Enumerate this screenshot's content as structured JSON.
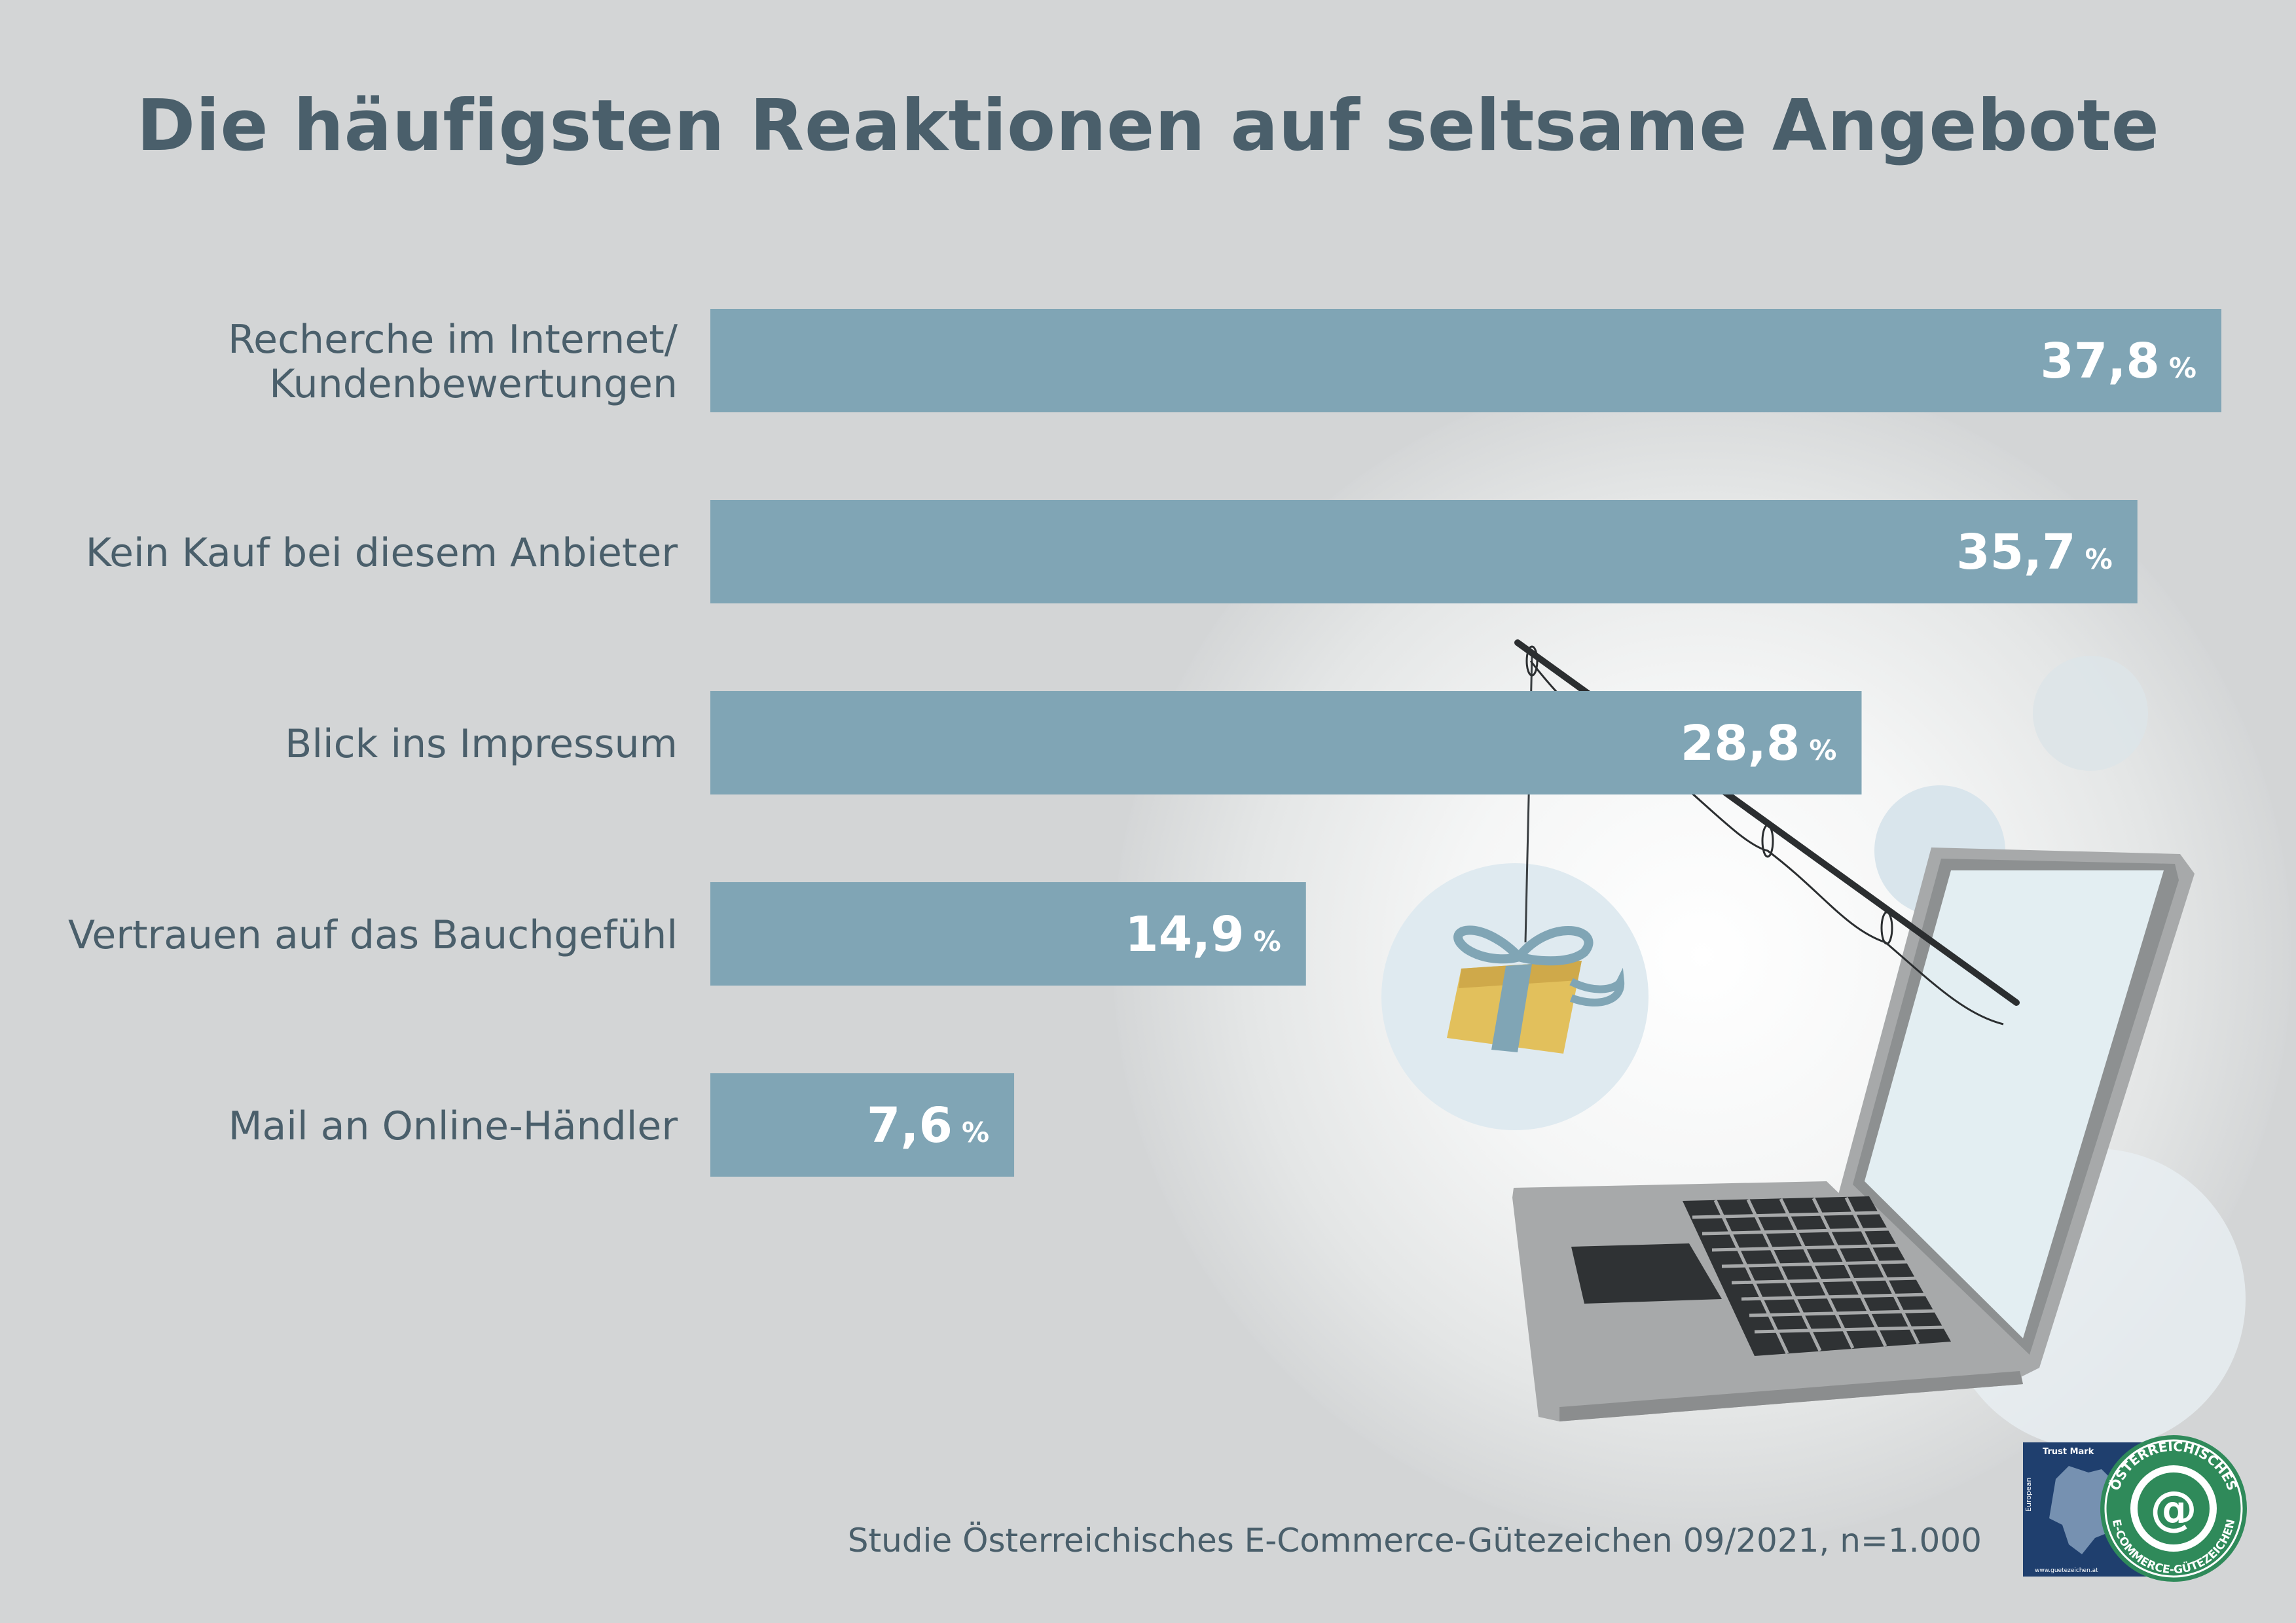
{
  "colors": {
    "background": "#d3d5d6",
    "bar": "#80a5b5",
    "text": "#4a5f6b",
    "value_text": "#ffffff"
  },
  "chart_data": {
    "type": "bar",
    "orientation": "horizontal",
    "title": "Die häufigsten Reaktionen auf seltsame Angebote",
    "unit": "%",
    "categories": [
      [
        "Recherche im Internet/",
        "Kundenbewertungen"
      ],
      [
        "Kein Kauf bei diesem Anbieter"
      ],
      [
        "Blick ins Impressum"
      ],
      [
        "Vertrauen auf das Bauchgefühl"
      ],
      [
        "Mail an Online-Händler"
      ]
    ],
    "values": [
      37.8,
      35.7,
      28.8,
      14.9,
      7.6
    ],
    "value_labels": [
      "37,8",
      "35,7",
      "28,8",
      "14,9",
      "7,6"
    ],
    "xlim": [
      0,
      37.8
    ],
    "grid": false,
    "legend": "none"
  },
  "source": "Studie Österreichisches E-Commerce-Gütezeichen 09/2021, n=1.000",
  "logo": {
    "icon": "trust-mark-seal-icon",
    "text_top": "ÖSTERREICHISCHES",
    "text_bottom": "E-COMMERCE-GÜTEZEICHEN",
    "trust_mark": "Trust Mark",
    "european": "European",
    "url": "www.guetezeichen.at"
  },
  "illustration": {
    "icon": "laptop-fishing-rod-gift-icon"
  }
}
